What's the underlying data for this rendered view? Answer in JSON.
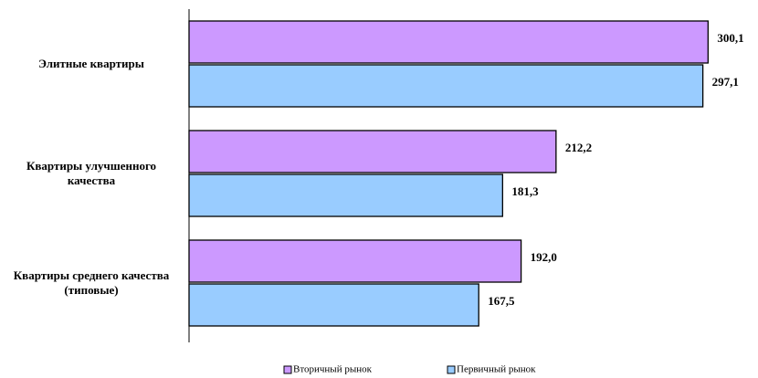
{
  "chart_data": {
    "type": "bar",
    "orientation": "horizontal",
    "categories": [
      "Элитные квартиры",
      "Квартиры улучшенного качества",
      "Квартиры среднего качества (типовые)"
    ],
    "series": [
      {
        "name": "Вторичный рынок",
        "color": "#cc99ff",
        "values": [
          300.1,
          212.2,
          192.0
        ],
        "value_labels": [
          "300,1",
          "212,2",
          "192,0"
        ]
      },
      {
        "name": "Первичный рынок",
        "color": "#99ccff",
        "values": [
          297.1,
          181.3,
          167.5
        ],
        "value_labels": [
          "297,1",
          "181,3",
          "167,5"
        ]
      }
    ],
    "xlim": [
      0,
      320
    ],
    "legend": "bottom"
  }
}
